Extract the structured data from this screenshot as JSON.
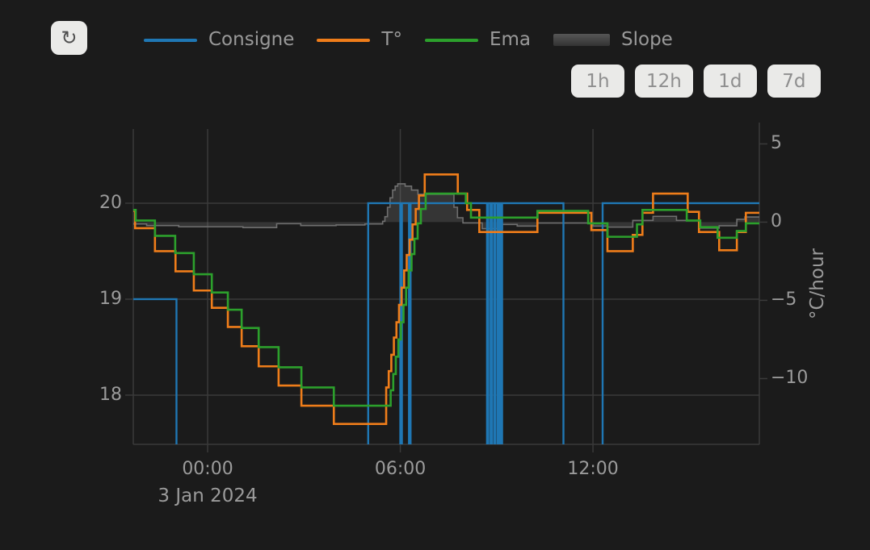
{
  "toolbar": {
    "refresh_icon": "↻",
    "range_buttons": [
      {
        "label": "1h"
      },
      {
        "label": "12h"
      },
      {
        "label": "1d"
      },
      {
        "label": "7d"
      }
    ]
  },
  "legend": {
    "items": [
      {
        "label": "Consigne",
        "color": "#1f77b4",
        "type": "line"
      },
      {
        "label": "T°",
        "color": "#ef7d1a",
        "type": "line"
      },
      {
        "label": "Ema",
        "color": "#2ca02c",
        "type": "line"
      },
      {
        "label": "Slope",
        "color": "#565656",
        "type": "area"
      }
    ]
  },
  "chart_data": {
    "type": "line",
    "title": "",
    "date_label": "3 Jan 2024",
    "x_unit": "hours from 00:00, 3 Jan 2024",
    "x_range": [
      -2.315,
      17.18
    ],
    "x_ticks": [
      {
        "t": 0,
        "label": "00:00"
      },
      {
        "t": 6,
        "label": "06:00"
      },
      {
        "t": 12,
        "label": "12:00"
      }
    ],
    "left_axis": {
      "title": "",
      "unit": "°C",
      "range": [
        17.487,
        20.773
      ],
      "ticks": [
        {
          "v": 20,
          "label": "20"
        },
        {
          "v": 19,
          "label": "19"
        },
        {
          "v": 18,
          "label": "18"
        }
      ]
    },
    "right_axis": {
      "title": "°C/hour",
      "range": [
        -14.205,
        5.95
      ],
      "ticks": [
        {
          "v": 5,
          "label": "5"
        },
        {
          "v": 0,
          "label": "0"
        },
        {
          "v": -5,
          "label": "−5"
        },
        {
          "v": -10,
          "label": "−10"
        }
      ]
    },
    "grid": {
      "color": "#3a3a3a",
      "vertical_at": [
        0,
        6,
        12
      ],
      "horizontal_at": [
        20,
        19,
        18
      ]
    },
    "series": [
      {
        "name": "Slope",
        "axis": "right",
        "style": "area",
        "color": "#6f6f6f",
        "fill": "rgba(130,130,130,0.25)",
        "points": [
          [
            -2.315,
            -0.12
          ],
          [
            -1.9,
            -0.22
          ],
          [
            -0.9,
            -0.3
          ],
          [
            1.1,
            -0.35
          ],
          [
            2.15,
            -0.1
          ],
          [
            2.9,
            -0.22
          ],
          [
            4.0,
            -0.18
          ],
          [
            4.9,
            -0.12
          ],
          [
            5.45,
            0.05
          ],
          [
            5.52,
            0.35
          ],
          [
            5.6,
            0.95
          ],
          [
            5.68,
            1.55
          ],
          [
            5.76,
            2.05
          ],
          [
            5.84,
            2.3
          ],
          [
            5.92,
            2.45
          ],
          [
            6.15,
            2.3
          ],
          [
            6.35,
            2.05
          ],
          [
            6.55,
            1.78
          ],
          [
            7.67,
            0.95
          ],
          [
            7.78,
            0.28
          ],
          [
            7.95,
            -0.05
          ],
          [
            8.55,
            -0.42
          ],
          [
            9.18,
            -0.15
          ],
          [
            9.64,
            -0.25
          ],
          [
            10.27,
            -0.06
          ],
          [
            12.0,
            -0.25
          ],
          [
            12.45,
            -0.32
          ],
          [
            13.24,
            0.11
          ],
          [
            13.87,
            0.37
          ],
          [
            14.6,
            0.11
          ],
          [
            15.35,
            -0.38
          ],
          [
            15.93,
            -0.23
          ],
          [
            16.48,
            0.18
          ],
          [
            16.73,
            0.33
          ]
        ]
      },
      {
        "name": "Consigne",
        "axis": "left",
        "style": "step",
        "color": "#1f77b4",
        "points": [
          [
            -2.315,
            19.0
          ],
          [
            -0.97,
            17.0
          ],
          [
            5.0,
            20.0
          ],
          [
            6.0,
            17.0
          ],
          [
            6.05,
            20.0
          ],
          [
            6.27,
            17.0
          ],
          [
            6.32,
            20.0
          ],
          [
            8.7,
            17.0
          ],
          [
            8.74,
            20.0
          ],
          [
            8.81,
            17.0
          ],
          [
            8.85,
            20.0
          ],
          [
            8.92,
            17.0
          ],
          [
            8.96,
            20.0
          ],
          [
            9.03,
            17.0
          ],
          [
            9.07,
            20.0
          ],
          [
            9.13,
            17.0
          ],
          [
            9.17,
            20.0
          ],
          [
            11.08,
            17.0
          ],
          [
            12.3,
            20.0
          ]
        ]
      },
      {
        "name": "T°",
        "axis": "left",
        "style": "step",
        "color": "#ef7d1a",
        "points": [
          [
            -2.315,
            19.92
          ],
          [
            -2.26,
            19.74
          ],
          [
            -1.64,
            19.5
          ],
          [
            -1.0,
            19.29
          ],
          [
            -0.43,
            19.09
          ],
          [
            0.13,
            18.91
          ],
          [
            0.63,
            18.71
          ],
          [
            1.06,
            18.51
          ],
          [
            1.59,
            18.3
          ],
          [
            2.21,
            18.1
          ],
          [
            2.92,
            17.89
          ],
          [
            3.93,
            17.7
          ],
          [
            5.56,
            18.08
          ],
          [
            5.64,
            18.25
          ],
          [
            5.72,
            18.42
          ],
          [
            5.8,
            18.6
          ],
          [
            5.88,
            18.76
          ],
          [
            5.96,
            18.94
          ],
          [
            6.04,
            19.12
          ],
          [
            6.12,
            19.3
          ],
          [
            6.2,
            19.46
          ],
          [
            6.29,
            19.62
          ],
          [
            6.38,
            19.78
          ],
          [
            6.48,
            19.94
          ],
          [
            6.58,
            20.08
          ],
          [
            6.76,
            20.3
          ],
          [
            7.79,
            20.1
          ],
          [
            8.08,
            19.93
          ],
          [
            8.46,
            19.7
          ],
          [
            10.27,
            19.9
          ],
          [
            11.95,
            19.72
          ],
          [
            12.45,
            19.5
          ],
          [
            13.24,
            19.67
          ],
          [
            13.54,
            19.9
          ],
          [
            13.87,
            20.1
          ],
          [
            14.95,
            19.91
          ],
          [
            15.3,
            19.7
          ],
          [
            15.93,
            19.51
          ],
          [
            16.48,
            19.7
          ],
          [
            16.76,
            19.9
          ]
        ]
      },
      {
        "name": "Ema",
        "axis": "left",
        "style": "step",
        "color": "#2ca02c",
        "points": [
          [
            -2.315,
            19.93
          ],
          [
            -2.24,
            19.82
          ],
          [
            -1.64,
            19.66
          ],
          [
            -1.01,
            19.48
          ],
          [
            -0.43,
            19.26
          ],
          [
            0.13,
            19.07
          ],
          [
            0.63,
            18.89
          ],
          [
            1.06,
            18.7
          ],
          [
            1.59,
            18.5
          ],
          [
            2.21,
            18.29
          ],
          [
            2.92,
            18.08
          ],
          [
            3.93,
            17.89
          ],
          [
            5.7,
            18.05
          ],
          [
            5.78,
            18.22
          ],
          [
            5.86,
            18.4
          ],
          [
            5.94,
            18.58
          ],
          [
            6.02,
            18.76
          ],
          [
            6.1,
            18.94
          ],
          [
            6.18,
            19.12
          ],
          [
            6.26,
            19.3
          ],
          [
            6.35,
            19.47
          ],
          [
            6.44,
            19.63
          ],
          [
            6.54,
            19.79
          ],
          [
            6.64,
            19.94
          ],
          [
            6.79,
            20.1
          ],
          [
            8.04,
            20.0
          ],
          [
            8.2,
            19.85
          ],
          [
            10.27,
            19.92
          ],
          [
            11.85,
            19.79
          ],
          [
            12.45,
            19.65
          ],
          [
            13.37,
            19.78
          ],
          [
            13.54,
            19.93
          ],
          [
            14.92,
            19.82
          ],
          [
            15.34,
            19.75
          ],
          [
            15.88,
            19.64
          ],
          [
            16.48,
            19.71
          ],
          [
            16.76,
            19.79
          ]
        ]
      }
    ]
  }
}
